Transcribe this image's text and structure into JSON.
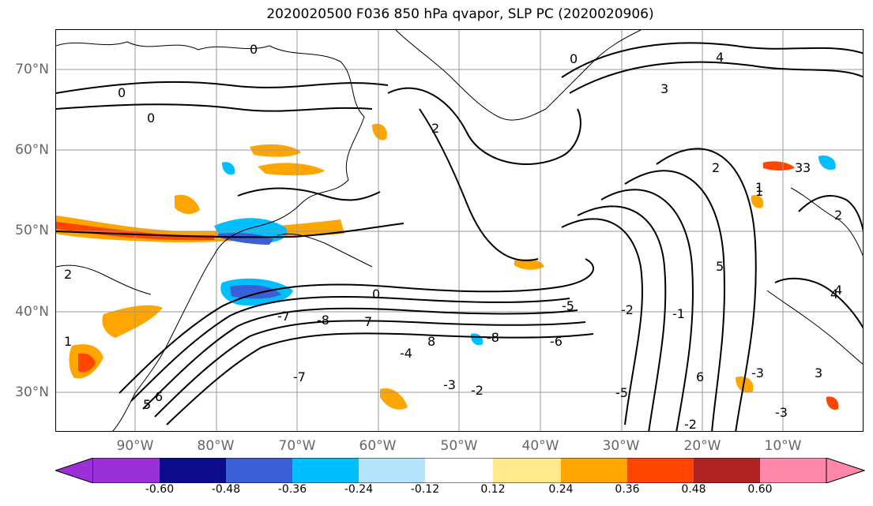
{
  "title": "2020020500 F036 850 hPa qvapor, SLP PC (2020020906)",
  "lat_labels": [
    "70°N",
    "60°N",
    "50°N",
    "40°N",
    "30°N"
  ],
  "lon_labels": [
    "90°W",
    "80°W",
    "70°W",
    "60°W",
    "50°W",
    "40°W",
    "30°W",
    "20°W",
    "10°W"
  ],
  "colorbar": {
    "ticks": [
      "-0.60",
      "-0.48",
      "-0.36",
      "-0.24",
      "-0.12",
      "0.12",
      "0.24",
      "0.36",
      "0.48",
      "0.60"
    ],
    "colors": [
      "#9b30d9",
      "#0b0b8c",
      "#3a5fd6",
      "#00bfff",
      "#b3e3fa",
      "#ffffff",
      "#ffe98c",
      "#ffa500",
      "#ff4500",
      "#b22222",
      "#ff88aa"
    ]
  },
  "contour_labels": [
    "0",
    "0",
    "0",
    "0",
    "2",
    "3",
    "4",
    "3",
    "2",
    "1",
    "5",
    "6",
    "7",
    "8",
    "-8",
    "-7",
    "-6",
    "-5",
    "-4",
    "-3",
    "-2",
    "-1",
    "0",
    "-3",
    "-2",
    "1",
    "2",
    "3",
    "4",
    "5",
    "6",
    "-8",
    "-7",
    "-5",
    "-3",
    "1",
    "2",
    "3",
    "4",
    "-2"
  ]
}
